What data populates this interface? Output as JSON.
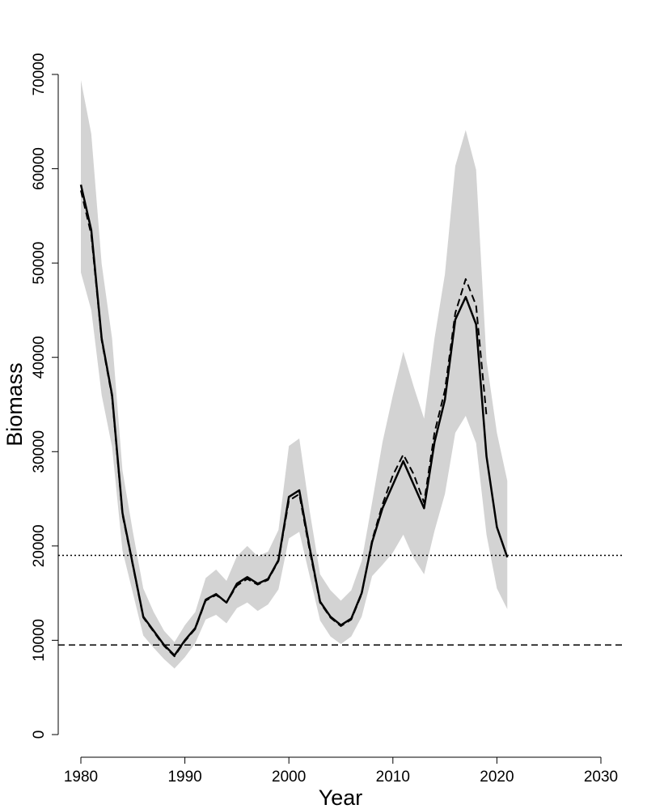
{
  "chart_data": {
    "type": "line",
    "title": "",
    "xlabel": "Year",
    "ylabel": "Biomass",
    "xlim": [
      1980,
      2030
    ],
    "ylim": [
      0,
      70000
    ],
    "x_ticks": [
      1980,
      1990,
      2000,
      2010,
      2020,
      2030
    ],
    "y_ticks": [
      0,
      10000,
      20000,
      30000,
      40000,
      50000,
      60000,
      70000
    ],
    "grid": false,
    "legend": "none",
    "series": [
      {
        "style": "solid",
        "color": "#000000",
        "x": [
          1980,
          1981,
          1982,
          1983,
          1984,
          1985,
          1986,
          1987,
          1988,
          1989,
          1990,
          1991,
          1992,
          1993,
          1994,
          1995,
          1996,
          1997,
          1998,
          1999,
          2000,
          2001,
          2002,
          2003,
          2004,
          2005,
          2006,
          2007,
          2008,
          2009,
          2010,
          2011,
          2012,
          2013,
          2014,
          2015,
          2016,
          2017,
          2018,
          2019,
          2020,
          2021
        ],
        "values": [
          58300,
          53500,
          42000,
          36000,
          23500,
          18000,
          12500,
          11000,
          9500,
          8400,
          10000,
          11300,
          14300,
          14900,
          14000,
          16000,
          16700,
          16000,
          16500,
          18500,
          25200,
          25900,
          19800,
          14100,
          12500,
          11600,
          12300,
          15000,
          20400,
          24000,
          26500,
          29000,
          26500,
          24000,
          31000,
          35500,
          44000,
          46400,
          43500,
          29500,
          22000,
          18800
        ]
      },
      {
        "style": "dashed",
        "color": "#000000",
        "x": [
          1980,
          1981,
          1982,
          1983,
          1984,
          1985,
          1986,
          1987,
          1988,
          1989,
          1990,
          1991,
          1992,
          1993,
          1994,
          1995,
          1996,
          1997,
          1998,
          1999,
          2000,
          2001,
          2002,
          2003,
          2004,
          2005,
          2006,
          2007,
          2008,
          2009,
          2010,
          2011,
          2012,
          2013,
          2014,
          2015,
          2016,
          2017,
          2018,
          2019
        ],
        "values": [
          57700,
          53000,
          41800,
          35800,
          23300,
          17900,
          12400,
          10900,
          9400,
          8300,
          9900,
          11200,
          14200,
          14800,
          14000,
          15800,
          16500,
          15900,
          16400,
          18400,
          24800,
          25500,
          19500,
          14000,
          12400,
          11500,
          12200,
          14900,
          20600,
          24400,
          27500,
          29700,
          27600,
          24600,
          32000,
          36500,
          44700,
          48300,
          45500,
          33800
        ]
      }
    ],
    "confidence_band": {
      "color": "#d3d3d3",
      "x": [
        1980,
        1981,
        1982,
        1983,
        1984,
        1985,
        1986,
        1987,
        1988,
        1989,
        1990,
        1991,
        1992,
        1993,
        1994,
        1995,
        1996,
        1997,
        1998,
        1999,
        2000,
        2001,
        2002,
        2003,
        2004,
        2005,
        2006,
        2007,
        2008,
        2009,
        2010,
        2011,
        2012,
        2013,
        2014,
        2015,
        2016,
        2017,
        2018,
        2019,
        2020,
        2021
      ],
      "lower": [
        49000,
        45000,
        36000,
        30500,
        19500,
        15000,
        10500,
        9200,
        8000,
        7000,
        8200,
        9700,
        12200,
        12700,
        11800,
        13400,
        14000,
        13100,
        13800,
        15400,
        20800,
        21500,
        16800,
        12100,
        10400,
        9600,
        10400,
        12500,
        16800,
        18000,
        19300,
        21200,
        18700,
        17000,
        21600,
        25500,
        32000,
        33800,
        30900,
        21200,
        15500,
        13300
      ],
      "upper": [
        69400,
        63700,
        49900,
        42000,
        28000,
        21500,
        15500,
        13000,
        11000,
        9800,
        11600,
        13000,
        16600,
        17500,
        16300,
        18900,
        20000,
        18900,
        19400,
        21700,
        30600,
        31400,
        23700,
        17000,
        15300,
        14200,
        15300,
        18400,
        24600,
        31000,
        36000,
        40600,
        36900,
        33500,
        42000,
        48800,
        60300,
        64100,
        59900,
        39700,
        32000,
        26900
      ]
    },
    "reference_lines": [
      {
        "style": "dotted",
        "y": 19000
      },
      {
        "style": "dashed",
        "y": 9500
      }
    ]
  }
}
